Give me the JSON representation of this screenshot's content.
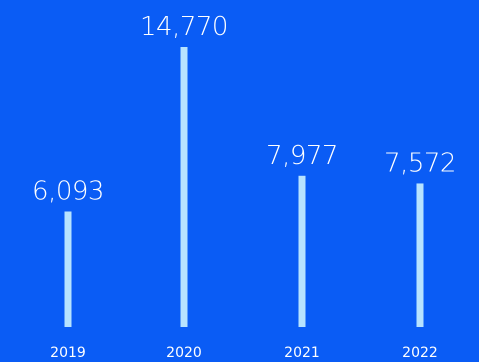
{
  "chart_data": {
    "type": "bar",
    "categories": [
      "2019",
      "2020",
      "2021",
      "2022"
    ],
    "values": [
      6093,
      14770,
      7977,
      7572
    ],
    "value_labels": [
      "6,093",
      "14,770",
      "7,977",
      "7,572"
    ],
    "ylim": [
      0,
      14770
    ],
    "grid": false,
    "legend": "none"
  },
  "colors": {
    "background": "#0A5CF5",
    "bar": "#B7E3FF",
    "text": "#FFFFFF"
  }
}
